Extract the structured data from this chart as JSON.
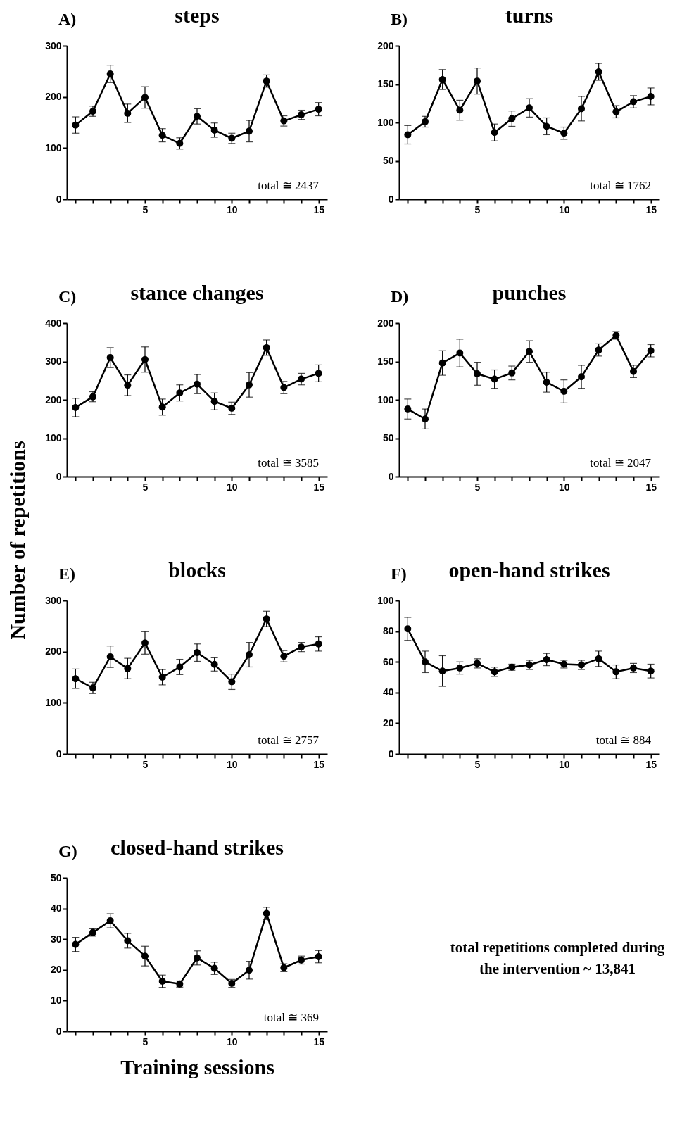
{
  "chart_data": [
    {
      "type": "line",
      "title": "steps",
      "x": [
        1,
        2,
        3,
        4,
        5,
        6,
        7,
        8,
        9,
        10,
        11,
        12,
        13,
        14,
        15
      ],
      "xlim": [
        0.5,
        15.5
      ],
      "xticks": [
        {
          "value": 1,
          "label": null
        },
        {
          "value": 2,
          "label": null
        },
        {
          "value": 3,
          "label": null
        },
        {
          "value": 4,
          "label": null
        },
        5,
        {
          "value": 6,
          "label": null
        },
        {
          "value": 7,
          "label": null
        },
        {
          "value": 8,
          "label": null
        },
        {
          "value": 9,
          "label": null
        },
        10,
        {
          "value": 11,
          "label": null
        },
        {
          "value": 12,
          "label": null
        },
        {
          "value": 13,
          "label": null
        },
        {
          "value": 14,
          "label": null
        },
        15
      ],
      "ylim": [
        0,
        300
      ],
      "yticks": [
        0,
        100,
        200,
        300
      ],
      "marker": "circle",
      "line_style": "solid",
      "annotations": [
        "A)",
        "total ≅ 2437"
      ],
      "series": [
        {
          "color": "#000000",
          "values": [
            145,
            172,
            245,
            168,
            199,
            125,
            109,
            162,
            135,
            119,
            133,
            231,
            153,
            165,
            176
          ],
          "errors": [
            16,
            10,
            17,
            18,
            21,
            13,
            11,
            15,
            14,
            10,
            21,
            12,
            10,
            9,
            13
          ]
        }
      ]
    },
    {
      "type": "line",
      "title": "turns",
      "x": [
        1,
        2,
        3,
        4,
        5,
        6,
        7,
        8,
        9,
        10,
        11,
        12,
        13,
        14,
        15
      ],
      "xlim": [
        0.5,
        15.5
      ],
      "xticks": [
        {
          "value": 1,
          "label": null
        },
        {
          "value": 2,
          "label": null
        },
        {
          "value": 3,
          "label": null
        },
        {
          "value": 4,
          "label": null
        },
        5,
        {
          "value": 6,
          "label": null
        },
        {
          "value": 7,
          "label": null
        },
        {
          "value": 8,
          "label": null
        },
        {
          "value": 9,
          "label": null
        },
        10,
        {
          "value": 11,
          "label": null
        },
        {
          "value": 12,
          "label": null
        },
        {
          "value": 13,
          "label": null
        },
        {
          "value": 14,
          "label": null
        },
        15
      ],
      "ylim": [
        0,
        200
      ],
      "yticks": [
        0,
        50,
        100,
        150,
        200
      ],
      "marker": "circle",
      "line_style": "solid",
      "annotations": [
        "B)",
        "total ≅ 1762"
      ],
      "series": [
        {
          "color": "#000000",
          "values": [
            84,
            101,
            156,
            116,
            154,
            87,
            105,
            119,
            95,
            86,
            118,
            166,
            114,
            127,
            134
          ],
          "errors": [
            12,
            7,
            13,
            13,
            17,
            11,
            10,
            12,
            11,
            8,
            16,
            11,
            8,
            8,
            11
          ]
        }
      ]
    },
    {
      "type": "line",
      "title": "stance changes",
      "ylabel": "Number of repetitions",
      "x": [
        1,
        2,
        3,
        4,
        5,
        6,
        7,
        8,
        9,
        10,
        11,
        12,
        13,
        14,
        15
      ],
      "xlim": [
        0.5,
        15.5
      ],
      "xticks": [
        {
          "value": 1,
          "label": null
        },
        {
          "value": 2,
          "label": null
        },
        {
          "value": 3,
          "label": null
        },
        {
          "value": 4,
          "label": null
        },
        5,
        {
          "value": 6,
          "label": null
        },
        {
          "value": 7,
          "label": null
        },
        {
          "value": 8,
          "label": null
        },
        {
          "value": 9,
          "label": null
        },
        10,
        {
          "value": 11,
          "label": null
        },
        {
          "value": 12,
          "label": null
        },
        {
          "value": 13,
          "label": null
        },
        {
          "value": 14,
          "label": null
        },
        15
      ],
      "ylim": [
        0,
        400
      ],
      "yticks": [
        0,
        100,
        200,
        300,
        400
      ],
      "marker": "circle",
      "line_style": "solid",
      "annotations": [
        "C)",
        "total ≅ 3585"
      ],
      "series": [
        {
          "color": "#000000",
          "values": [
            180,
            208,
            310,
            238,
            305,
            181,
            218,
            241,
            196,
            178,
            239,
            336,
            232,
            254,
            269
          ],
          "errors": [
            24,
            13,
            26,
            27,
            33,
            21,
            21,
            25,
            22,
            16,
            32,
            20,
            16,
            15,
            22
          ]
        }
      ]
    },
    {
      "type": "line",
      "title": "punches",
      "x": [
        1,
        2,
        3,
        4,
        5,
        6,
        7,
        8,
        9,
        10,
        11,
        12,
        13,
        14,
        15
      ],
      "xlim": [
        0.5,
        15.5
      ],
      "xticks": [
        {
          "value": 1,
          "label": null
        },
        {
          "value": 2,
          "label": null
        },
        {
          "value": 3,
          "label": null
        },
        {
          "value": 4,
          "label": null
        },
        5,
        {
          "value": 6,
          "label": null
        },
        {
          "value": 7,
          "label": null
        },
        {
          "value": 8,
          "label": null
        },
        {
          "value": 9,
          "label": null
        },
        10,
        {
          "value": 11,
          "label": null
        },
        {
          "value": 12,
          "label": null
        },
        {
          "value": 13,
          "label": null
        },
        {
          "value": 14,
          "label": null
        },
        15
      ],
      "ylim": [
        0,
        200
      ],
      "yticks": [
        0,
        50,
        100,
        150,
        200
      ],
      "marker": "circle",
      "line_style": "solid",
      "annotations": [
        "D)",
        "total ≅ 2047"
      ],
      "series": [
        {
          "color": "#000000",
          "values": [
            88,
            75,
            148,
            161,
            134,
            127,
            135,
            163,
            123,
            111,
            130,
            165,
            184,
            137,
            164
          ],
          "errors": [
            13,
            13,
            16,
            18,
            15,
            12,
            9,
            14,
            13,
            15,
            15,
            8,
            5,
            8,
            8
          ]
        }
      ]
    },
    {
      "type": "line",
      "title": "blocks",
      "x": [
        1,
        2,
        3,
        4,
        5,
        6,
        7,
        8,
        9,
        10,
        11,
        12,
        13,
        14,
        15
      ],
      "xlim": [
        0.5,
        15.5
      ],
      "xticks": [
        {
          "value": 1,
          "label": null
        },
        {
          "value": 2,
          "label": null
        },
        {
          "value": 3,
          "label": null
        },
        {
          "value": 4,
          "label": null
        },
        5,
        {
          "value": 6,
          "label": null
        },
        {
          "value": 7,
          "label": null
        },
        {
          "value": 8,
          "label": null
        },
        {
          "value": 9,
          "label": null
        },
        10,
        {
          "value": 11,
          "label": null
        },
        {
          "value": 12,
          "label": null
        },
        {
          "value": 13,
          "label": null
        },
        {
          "value": 14,
          "label": null
        },
        15
      ],
      "ylim": [
        0,
        300
      ],
      "yticks": [
        0,
        100,
        200,
        300
      ],
      "marker": "circle",
      "line_style": "solid",
      "annotations": [
        "E)",
        "total ≅ 2757"
      ],
      "series": [
        {
          "color": "#000000",
          "values": [
            147,
            129,
            190,
            167,
            217,
            150,
            170,
            198,
            175,
            141,
            194,
            264,
            191,
            209,
            215
          ],
          "errors": [
            19,
            11,
            21,
            20,
            22,
            15,
            15,
            17,
            13,
            15,
            24,
            15,
            11,
            9,
            14
          ]
        }
      ]
    },
    {
      "type": "line",
      "title": "open-hand strikes",
      "x": [
        1,
        2,
        3,
        4,
        5,
        6,
        7,
        8,
        9,
        10,
        11,
        12,
        13,
        14,
        15
      ],
      "xlim": [
        0.5,
        15.5
      ],
      "xticks": [
        {
          "value": 1,
          "label": null
        },
        {
          "value": 2,
          "label": null
        },
        {
          "value": 3,
          "label": null
        },
        {
          "value": 4,
          "label": null
        },
        5,
        {
          "value": 6,
          "label": null
        },
        {
          "value": 7,
          "label": null
        },
        {
          "value": 8,
          "label": null
        },
        {
          "value": 9,
          "label": null
        },
        10,
        {
          "value": 11,
          "label": null
        },
        {
          "value": 12,
          "label": null
        },
        {
          "value": 13,
          "label": null
        },
        {
          "value": 14,
          "label": null
        },
        15
      ],
      "ylim": [
        0,
        100
      ],
      "yticks": [
        0,
        20,
        40,
        60,
        80,
        100
      ],
      "marker": "circle",
      "line_style": "solid",
      "annotations": [
        "F)",
        "total ≅ 884"
      ],
      "series": [
        {
          "color": "#000000",
          "values": [
            81.5,
            60,
            54,
            56,
            59,
            53.5,
            56.5,
            58,
            61.5,
            58.5,
            58,
            62,
            53.5,
            56,
            54
          ],
          "errors": [
            7.5,
            7,
            10,
            4,
            3,
            3,
            2,
            3,
            4,
            2.5,
            3,
            5,
            4.5,
            3,
            4.5
          ]
        }
      ]
    },
    {
      "type": "line",
      "title": "closed-hand strikes",
      "xlabel": "Training sessions",
      "x": [
        1,
        2,
        3,
        4,
        5,
        6,
        7,
        8,
        9,
        10,
        11,
        12,
        13,
        14,
        15
      ],
      "xlim": [
        0.5,
        15.5
      ],
      "xticks": [
        {
          "value": 1,
          "label": null
        },
        {
          "value": 2,
          "label": null
        },
        {
          "value": 3,
          "label": null
        },
        {
          "value": 4,
          "label": null
        },
        5,
        {
          "value": 6,
          "label": null
        },
        {
          "value": 7,
          "label": null
        },
        {
          "value": 8,
          "label": null
        },
        {
          "value": 9,
          "label": null
        },
        10,
        {
          "value": 11,
          "label": null
        },
        {
          "value": 12,
          "label": null
        },
        {
          "value": 13,
          "label": null
        },
        {
          "value": 14,
          "label": null
        },
        15
      ],
      "ylim": [
        0,
        50
      ],
      "yticks": [
        0,
        10,
        20,
        30,
        40,
        50
      ],
      "marker": "circle",
      "line_style": "solid",
      "annotations": [
        "G)",
        "total ≅ 369"
      ],
      "series": [
        {
          "color": "#000000",
          "values": [
            28.3,
            32.2,
            36,
            29.5,
            24.5,
            16.3,
            15.4,
            23.9,
            20.5,
            15.6,
            19.9,
            38.4,
            20.7,
            23.2,
            24.3
          ],
          "errors": [
            2.3,
            1.2,
            2.3,
            2.4,
            3.2,
            2,
            1,
            2.3,
            2,
            1.3,
            2.9,
            2,
            1.3,
            1.3,
            2
          ]
        }
      ]
    },
    {
      "type": "other",
      "annotations": [
        "total repetitions completed during",
        "the intervention ~ 13,841"
      ]
    }
  ]
}
